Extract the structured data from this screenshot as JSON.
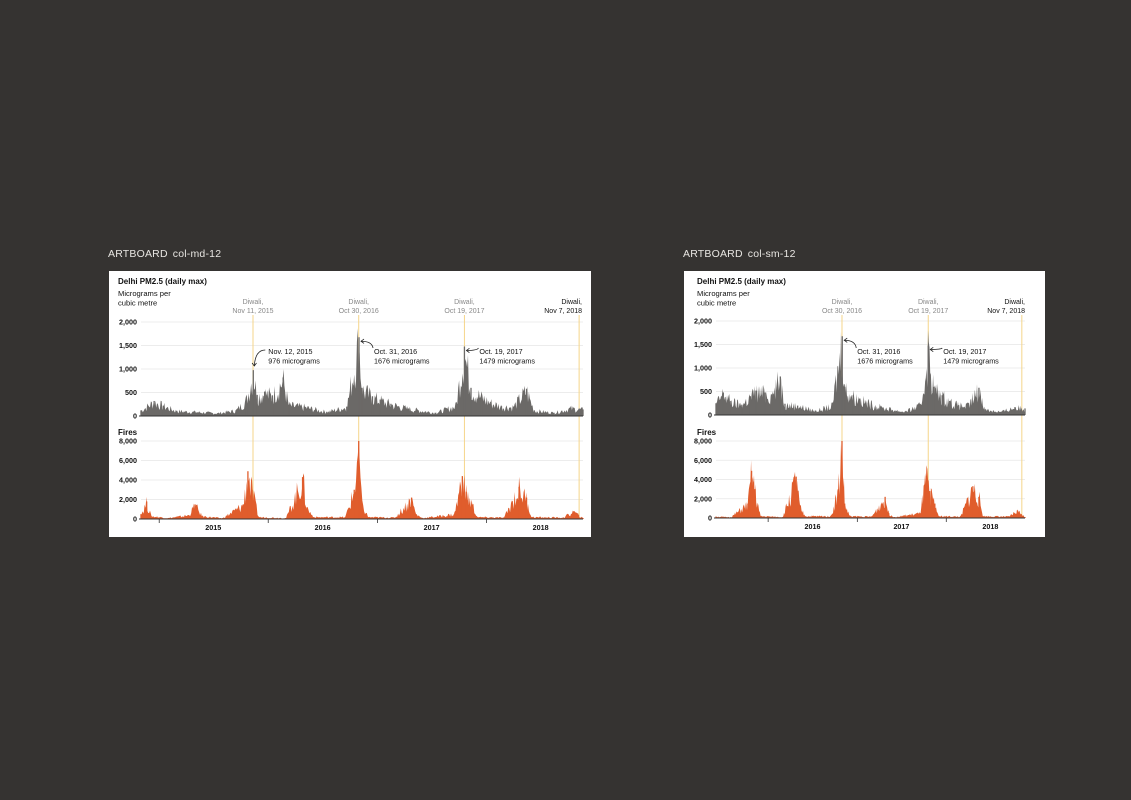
{
  "artboards": [
    {
      "label_key": "ARTBOARD",
      "label_name": "col-md-12"
    },
    {
      "label_key": "ARTBOARD",
      "label_name": "col-sm-12"
    }
  ],
  "colors": {
    "background": "#353331",
    "pm_area": "#6b6967",
    "fires_area": "#e05d2c",
    "diwali_line": "#f5d58a",
    "axis": "#333333",
    "grid": "#e6e6e6"
  },
  "chart_data": [
    {
      "type": "area",
      "artboard": "col-md-12",
      "x_range": [
        "2014-11-01",
        "2018-11-20"
      ],
      "year_labels": [
        "2015",
        "2016",
        "2017",
        "2018"
      ],
      "panels": [
        {
          "title": "Delhi PM2.5 (daily max)",
          "subtitle": [
            "Micrograms per",
            "cubic metre"
          ],
          "yticks": [
            {
              "v": 0,
              "t": "0"
            },
            {
              "v": 500,
              "t": "500"
            },
            {
              "v": 1000,
              "t": "1,000"
            },
            {
              "v": 1500,
              "t": "1,500"
            },
            {
              "v": 2000,
              "t": "2,000"
            }
          ],
          "ylim": [
            0,
            2000
          ],
          "annotations": [
            {
              "date": "2015-11-12",
              "lines": [
                "Nov. 12, 2015",
                "976 micrograms"
              ]
            },
            {
              "date": "2016-10-31",
              "lines": [
                "Oct. 31, 2016",
                "1676 micrograms"
              ]
            },
            {
              "date": "2017-10-19",
              "lines": [
                "Oct. 19, 2017",
                "1479 micrograms"
              ]
            }
          ]
        },
        {
          "title": "Fires",
          "yticks": [
            {
              "v": 0,
              "t": "0"
            },
            {
              "v": 2000,
              "t": "2,000"
            },
            {
              "v": 4000,
              "t": "4,000"
            },
            {
              "v": 6000,
              "t": "6,000"
            },
            {
              "v": 8000,
              "t": "8,000"
            }
          ],
          "ylim": [
            0,
            8000
          ]
        }
      ],
      "diwali": [
        {
          "date": "2015-11-11",
          "lines": [
            "Diwali,",
            "Nov 11, 2015"
          ]
        },
        {
          "date": "2016-10-30",
          "lines": [
            "Diwali,",
            "Oct 30, 2016"
          ]
        },
        {
          "date": "2017-10-19",
          "lines": [
            "Diwali,",
            "Oct 19, 2017"
          ]
        },
        {
          "date": "2018-11-07",
          "lines": [
            "Diwali,",
            "Nov 7, 2018"
          ]
        }
      ],
      "series": [
        {
          "panel": 0,
          "points": [
            [
              "2014-11-01",
              120
            ],
            [
              "2014-12-15",
              320
            ],
            [
              "2015-01-15",
              220
            ],
            [
              "2015-03-01",
              110
            ],
            [
              "2015-05-01",
              90
            ],
            [
              "2015-07-15",
              60
            ],
            [
              "2015-09-15",
              120
            ],
            [
              "2015-10-20",
              350
            ],
            [
              "2015-11-12",
              976
            ],
            [
              "2015-11-25",
              450
            ],
            [
              "2015-12-20",
              520
            ],
            [
              "2016-01-15",
              440
            ],
            [
              "2016-02-20",
              820
            ],
            [
              "2016-03-10",
              240
            ],
            [
              "2016-05-01",
              200
            ],
            [
              "2016-07-15",
              90
            ],
            [
              "2016-09-20",
              200
            ],
            [
              "2016-10-31",
              1676
            ],
            [
              "2016-11-10",
              600
            ],
            [
              "2016-12-15",
              420
            ],
            [
              "2017-01-10",
              350
            ],
            [
              "2017-02-15",
              260
            ],
            [
              "2017-04-15",
              160
            ],
            [
              "2017-07-15",
              70
            ],
            [
              "2017-09-20",
              220
            ],
            [
              "2017-10-19",
              1479
            ],
            [
              "2017-11-10",
              600
            ],
            [
              "2017-12-15",
              420
            ],
            [
              "2018-01-15",
              300
            ],
            [
              "2018-02-20",
              210
            ],
            [
              "2018-04-01",
              200
            ],
            [
              "2018-05-15",
              580
            ],
            [
              "2018-06-10",
              120
            ],
            [
              "2018-08-15",
              70
            ],
            [
              "2018-10-10",
              170
            ],
            [
              "2018-11-20",
              140
            ]
          ]
        },
        {
          "panel": 1,
          "points": [
            [
              "2014-11-01",
              500
            ],
            [
              "2014-11-20",
              1800
            ],
            [
              "2014-12-05",
              300
            ],
            [
              "2015-02-01",
              100
            ],
            [
              "2015-04-10",
              400
            ],
            [
              "2015-05-01",
              1500
            ],
            [
              "2015-05-25",
              300
            ],
            [
              "2015-08-01",
              80
            ],
            [
              "2015-10-10",
              1500
            ],
            [
              "2015-10-25",
              4900
            ],
            [
              "2015-11-08",
              3000
            ],
            [
              "2015-11-30",
              200
            ],
            [
              "2016-03-01",
              100
            ],
            [
              "2016-04-25",
              4300
            ],
            [
              "2016-05-10",
              1200
            ],
            [
              "2016-06-01",
              200
            ],
            [
              "2016-09-15",
              200
            ],
            [
              "2016-10-15",
              3000
            ],
            [
              "2016-10-30",
              8000
            ],
            [
              "2016-11-10",
              1500
            ],
            [
              "2016-12-01",
              200
            ],
            [
              "2017-03-01",
              150
            ],
            [
              "2017-04-25",
              2200
            ],
            [
              "2017-05-10",
              500
            ],
            [
              "2017-06-01",
              100
            ],
            [
              "2017-09-15",
              500
            ],
            [
              "2017-10-12",
              4400
            ],
            [
              "2017-10-25",
              2800
            ],
            [
              "2017-11-15",
              1500
            ],
            [
              "2017-12-01",
              200
            ],
            [
              "2018-03-01",
              150
            ],
            [
              "2018-04-20",
              3300
            ],
            [
              "2018-05-15",
              2200
            ],
            [
              "2018-06-01",
              200
            ],
            [
              "2018-09-15",
              150
            ],
            [
              "2018-10-20",
              800
            ],
            [
              "2018-11-05",
              400
            ],
            [
              "2018-11-20",
              100
            ]
          ]
        }
      ]
    },
    {
      "type": "area",
      "artboard": "col-sm-12",
      "x_range": [
        "2015-06-01",
        "2018-11-20"
      ],
      "year_labels": [
        "2016",
        "2017",
        "2018"
      ],
      "panels": [
        {
          "title": "Delhi PM2.5 (daily max)",
          "subtitle": [
            "Micrograms per",
            "cubic metre"
          ],
          "yticks": [
            {
              "v": 0,
              "t": "0"
            },
            {
              "v": 500,
              "t": "500"
            },
            {
              "v": 1000,
              "t": "1,000"
            },
            {
              "v": 1500,
              "t": "1,500"
            },
            {
              "v": 2000,
              "t": "2,000"
            }
          ],
          "ylim": [
            0,
            2000
          ],
          "annotations": [
            {
              "date": "2016-10-31",
              "lines": [
                "Oct. 31, 2016",
                "1676 micrograms"
              ]
            },
            {
              "date": "2017-10-19",
              "lines": [
                "Oct. 19, 2017",
                "1479 micrograms"
              ]
            }
          ]
        },
        {
          "title": "Fires",
          "yticks": [
            {
              "v": 0,
              "t": "0"
            },
            {
              "v": 2000,
              "t": "2,000"
            },
            {
              "v": 4000,
              "t": "4,000"
            },
            {
              "v": 6000,
              "t": "6,000"
            },
            {
              "v": 8000,
              "t": "8,000"
            }
          ],
          "ylim": [
            0,
            8000
          ]
        }
      ],
      "diwali": [
        {
          "date": "2016-10-30",
          "lines": [
            "Diwali,",
            "Oct 30, 2016"
          ]
        },
        {
          "date": "2017-10-19",
          "lines": [
            "Diwali,",
            "Oct 19, 2017"
          ]
        },
        {
          "date": "2018-11-07",
          "lines": [
            "Diwali,",
            "Nov 7, 2018"
          ]
        }
      ],
      "series": [
        {
          "panel": 0,
          "points": [
            [
              "2015-06-01",
              250
            ],
            [
              "2015-07-01",
              480
            ],
            [
              "2015-08-01",
              300
            ],
            [
              "2015-09-15",
              220
            ],
            [
              "2015-10-20",
              400
            ],
            [
              "2015-11-12",
              520
            ],
            [
              "2015-12-20",
              480
            ],
            [
              "2016-01-15",
              440
            ],
            [
              "2016-02-20",
              820
            ],
            [
              "2016-03-10",
              240
            ],
            [
              "2016-05-01",
              200
            ],
            [
              "2016-07-15",
              90
            ],
            [
              "2016-09-20",
              200
            ],
            [
              "2016-10-31",
              1676
            ],
            [
              "2016-11-10",
              600
            ],
            [
              "2016-12-15",
              420
            ],
            [
              "2017-01-10",
              350
            ],
            [
              "2017-02-15",
              260
            ],
            [
              "2017-04-15",
              160
            ],
            [
              "2017-07-15",
              70
            ],
            [
              "2017-09-20",
              220
            ],
            [
              "2017-10-19",
              1479
            ],
            [
              "2017-11-10",
              600
            ],
            [
              "2017-12-15",
              420
            ],
            [
              "2018-01-15",
              300
            ],
            [
              "2018-02-20",
              210
            ],
            [
              "2018-04-01",
              200
            ],
            [
              "2018-05-15",
              580
            ],
            [
              "2018-06-10",
              120
            ],
            [
              "2018-08-15",
              70
            ],
            [
              "2018-10-10",
              170
            ],
            [
              "2018-11-20",
              140
            ]
          ]
        },
        {
          "panel": 1,
          "points": [
            [
              "2015-06-01",
              150
            ],
            [
              "2015-08-01",
              80
            ],
            [
              "2015-10-10",
              1500
            ],
            [
              "2015-10-25",
              4900
            ],
            [
              "2015-11-08",
              3000
            ],
            [
              "2015-11-30",
              200
            ],
            [
              "2016-03-01",
              100
            ],
            [
              "2016-04-25",
              4300
            ],
            [
              "2016-05-10",
              1200
            ],
            [
              "2016-06-01",
              200
            ],
            [
              "2016-09-15",
              200
            ],
            [
              "2016-10-15",
              3000
            ],
            [
              "2016-10-30",
              8000
            ],
            [
              "2016-11-10",
              1500
            ],
            [
              "2016-12-01",
              200
            ],
            [
              "2017-03-01",
              150
            ],
            [
              "2017-04-25",
              2200
            ],
            [
              "2017-05-10",
              500
            ],
            [
              "2017-06-01",
              100
            ],
            [
              "2017-09-15",
              500
            ],
            [
              "2017-10-12",
              4400
            ],
            [
              "2017-10-25",
              2800
            ],
            [
              "2017-11-15",
              1500
            ],
            [
              "2017-12-01",
              200
            ],
            [
              "2018-03-01",
              150
            ],
            [
              "2018-04-20",
              3300
            ],
            [
              "2018-05-15",
              2200
            ],
            [
              "2018-06-01",
              200
            ],
            [
              "2018-09-15",
              150
            ],
            [
              "2018-10-20",
              800
            ],
            [
              "2018-11-05",
              400
            ],
            [
              "2018-11-20",
              100
            ]
          ]
        }
      ]
    }
  ]
}
